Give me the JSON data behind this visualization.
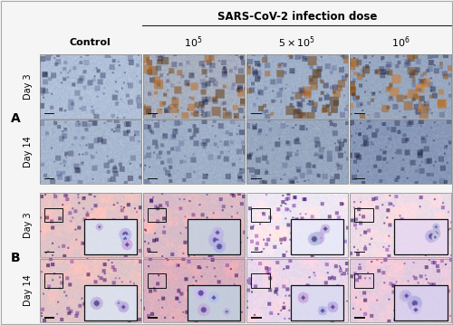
{
  "title_top": "SARS-CoV-2 infection dose",
  "fig_bg": "#f5f5f5",
  "header_line_color": "#222222",
  "col_labels": [
    "Control",
    "$10^5$",
    "$5 \\times 10^5$",
    "$10^6$"
  ],
  "section_A_row_labels": [
    "Day 3",
    "Day 14"
  ],
  "section_B_row_labels": [
    "Day 3",
    "Day 14"
  ],
  "section_labels": [
    "A",
    "B"
  ],
  "section_fontsize": 10,
  "col_label_fontsize": 8,
  "row_label_fontsize": 7,
  "ihc_A_day3_colors": [
    "#b8c8dc",
    "#b89878",
    "#b88878",
    "#a87858"
  ],
  "ihc_A_day14_colors": [
    "#aabcd0",
    "#a8b8d0",
    "#98a8c8",
    "#8898b8"
  ],
  "pas_B_day3_bg": [
    "#e8c8cc",
    "#e0c0cc",
    "#f0e8f4",
    "#f0d8e8"
  ],
  "pas_B_day14_bg": [
    "#e8c8cc",
    "#e0b0c4",
    "#e8d8ec",
    "#e8d0e4"
  ],
  "inset_bg_day3": [
    "#d8dce8",
    "#c8cce0",
    "#e8e8f8",
    "#e8d8f0"
  ],
  "inset_bg_day14": [
    "#dce0ec",
    "#c8cce0",
    "#dcd8f0",
    "#d8d0ec"
  ],
  "scale_bar_color": "#111111",
  "inset_border_color": "#111111"
}
